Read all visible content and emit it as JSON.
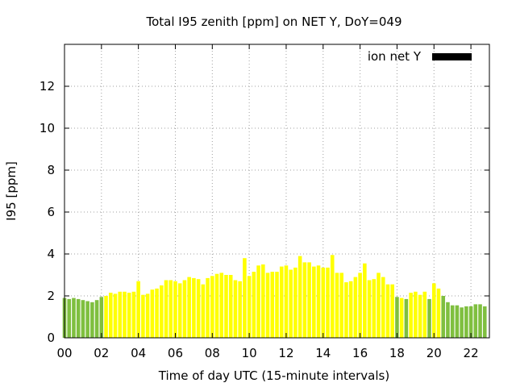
{
  "chart_data": {
    "type": "bar",
    "title": "Total I95 zenith [ppm] on NET Y, DoY=049",
    "xlabel": "Time of day UTC (15-minute intervals)",
    "ylabel": "I95 [ppm]",
    "legend": {
      "label": "ion net Y",
      "placement": "top-right",
      "color": "#000000"
    },
    "grid": true,
    "xlim": [
      0,
      23
    ],
    "ylim": [
      0,
      14
    ],
    "x_tick_labels": [
      "00",
      "02",
      "04",
      "06",
      "08",
      "10",
      "12",
      "14",
      "16",
      "18",
      "20",
      "22"
    ],
    "y_tick_labels": [
      "0",
      "2",
      "4",
      "6",
      "8",
      "10",
      "12"
    ],
    "bar_interval_hours": 0.25,
    "colors": {
      "green": "#7fbf3f",
      "yellow": "#ffff00"
    },
    "x": [
      0.0,
      0.25,
      0.5,
      0.75,
      1.0,
      1.25,
      1.5,
      1.75,
      2.0,
      2.25,
      2.5,
      2.75,
      3.0,
      3.25,
      3.5,
      3.75,
      4.0,
      4.25,
      4.5,
      4.75,
      5.0,
      5.25,
      5.5,
      5.75,
      6.0,
      6.25,
      6.5,
      6.75,
      7.0,
      7.25,
      7.5,
      7.75,
      8.0,
      8.25,
      8.5,
      8.75,
      9.0,
      9.25,
      9.5,
      9.75,
      10.0,
      10.25,
      10.5,
      10.75,
      11.0,
      11.25,
      11.5,
      11.75,
      12.0,
      12.25,
      12.5,
      12.75,
      13.0,
      13.25,
      13.5,
      13.75,
      14.0,
      14.25,
      14.5,
      14.75,
      15.0,
      15.25,
      15.5,
      15.75,
      16.0,
      16.25,
      16.5,
      16.75,
      17.0,
      17.25,
      17.5,
      17.75,
      18.0,
      18.25,
      18.5,
      18.75,
      19.0,
      19.25,
      19.5,
      19.75,
      20.0,
      20.25,
      20.5,
      20.75,
      21.0,
      21.25,
      21.5,
      21.75,
      22.0,
      22.25,
      22.5,
      22.75
    ],
    "values": [
      1.9,
      1.85,
      1.9,
      1.85,
      1.8,
      1.75,
      1.7,
      1.8,
      1.95,
      2.0,
      2.15,
      2.1,
      2.2,
      2.2,
      2.15,
      2.2,
      2.7,
      2.05,
      2.1,
      2.3,
      2.35,
      2.5,
      2.75,
      2.75,
      2.7,
      2.6,
      2.75,
      2.9,
      2.85,
      2.8,
      2.55,
      2.85,
      2.95,
      3.05,
      3.1,
      3.0,
      3.0,
      2.75,
      2.7,
      3.8,
      2.95,
      3.15,
      3.45,
      3.5,
      3.1,
      3.15,
      3.15,
      3.4,
      3.45,
      3.25,
      3.35,
      3.9,
      3.6,
      3.6,
      3.4,
      3.45,
      3.35,
      3.35,
      3.95,
      3.1,
      3.1,
      2.65,
      2.7,
      2.9,
      3.1,
      3.55,
      2.75,
      2.8,
      3.1,
      2.9,
      2.55,
      2.55,
      1.95,
      1.9,
      1.85,
      2.15,
      2.2,
      2.05,
      2.2,
      1.85,
      2.6,
      2.35,
      2.0,
      1.7,
      1.55,
      1.55,
      1.45,
      1.5,
      1.5,
      1.6,
      1.6,
      1.5
    ],
    "bar_colors": [
      "green",
      "green",
      "green",
      "green",
      "green",
      "green",
      "green",
      "green",
      "green",
      "yellow",
      "yellow",
      "yellow",
      "yellow",
      "yellow",
      "yellow",
      "yellow",
      "yellow",
      "yellow",
      "yellow",
      "yellow",
      "yellow",
      "yellow",
      "yellow",
      "yellow",
      "yellow",
      "yellow",
      "yellow",
      "yellow",
      "yellow",
      "yellow",
      "yellow",
      "yellow",
      "yellow",
      "yellow",
      "yellow",
      "yellow",
      "yellow",
      "yellow",
      "yellow",
      "yellow",
      "yellow",
      "yellow",
      "yellow",
      "yellow",
      "yellow",
      "yellow",
      "yellow",
      "yellow",
      "yellow",
      "yellow",
      "yellow",
      "yellow",
      "yellow",
      "yellow",
      "yellow",
      "yellow",
      "yellow",
      "yellow",
      "yellow",
      "yellow",
      "yellow",
      "yellow",
      "yellow",
      "yellow",
      "yellow",
      "yellow",
      "yellow",
      "yellow",
      "yellow",
      "yellow",
      "yellow",
      "yellow",
      "green",
      "yellow",
      "green",
      "yellow",
      "yellow",
      "yellow",
      "yellow",
      "green",
      "yellow",
      "yellow",
      "green",
      "green",
      "green",
      "green",
      "green",
      "green",
      "green",
      "green",
      "green",
      "green"
    ]
  }
}
